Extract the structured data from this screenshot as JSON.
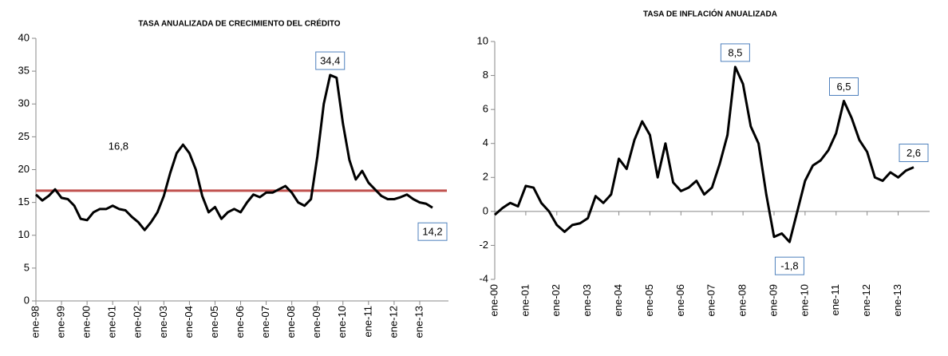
{
  "chart_data": [
    {
      "type": "line",
      "title": "TASA ANUALIZADA DE CRECIMIENTO DEL CRÉDITO",
      "categories": [
        "ene-98",
        null,
        null,
        null,
        "ene-99",
        null,
        null,
        null,
        "ene-00",
        null,
        null,
        null,
        "ene-01",
        null,
        null,
        null,
        "ene-02",
        null,
        null,
        null,
        "ene-03",
        null,
        null,
        null,
        "ene-04",
        null,
        null,
        null,
        "ene-05",
        null,
        null,
        null,
        "ene-06",
        null,
        null,
        null,
        "ene-07",
        null,
        null,
        null,
        "ene-08",
        null,
        null,
        null,
        "ene-09",
        null,
        null,
        null,
        "ene-10",
        null,
        null,
        null,
        "ene-11",
        null,
        null,
        null,
        "ene-12",
        null,
        null,
        null,
        "ene-13",
        null,
        null
      ],
      "series": [
        {
          "color": "#000000",
          "values": [
            16.2,
            15.3,
            16.0,
            17.0,
            15.7,
            15.5,
            14.5,
            12.5,
            12.3,
            13.5,
            14.0,
            14.0,
            14.5,
            14.0,
            13.8,
            12.8,
            12.0,
            10.8,
            12.0,
            13.5,
            16.0,
            19.5,
            22.5,
            23.8,
            22.5,
            20.0,
            16.0,
            13.5,
            14.3,
            12.5,
            13.5,
            14.0,
            13.5,
            15.0,
            16.2,
            15.8,
            16.5,
            16.5,
            17.0,
            17.5,
            16.5,
            15.0,
            14.5,
            15.5,
            22.0,
            30.0,
            34.4,
            34.0,
            27.0,
            21.5,
            18.5,
            19.8,
            18.0,
            17.0,
            16.0,
            15.5,
            15.5,
            15.8,
            16.2,
            15.5,
            15.0,
            14.8,
            14.2
          ],
          "value_labels": [
            null,
            null,
            null,
            null,
            null,
            null,
            null,
            null,
            null,
            null,
            null,
            null,
            null,
            null,
            null,
            null,
            null,
            null,
            null,
            null,
            null,
            null,
            null,
            null,
            null,
            null,
            null,
            null,
            null,
            null,
            null,
            null,
            null,
            null,
            null,
            null,
            null,
            null,
            null,
            null,
            null,
            null,
            null,
            null,
            null,
            null,
            "34,4",
            null,
            null,
            null,
            null,
            null,
            null,
            null,
            null,
            null,
            null,
            null,
            null,
            null,
            null,
            null,
            "14,2"
          ]
        }
      ],
      "reference_line": {
        "value": 16.8,
        "label": "16,8",
        "color": "#c0504d"
      },
      "ylim": [
        0,
        40
      ],
      "yticks": [
        0,
        5,
        10,
        15,
        20,
        25,
        30,
        35,
        40
      ]
    },
    {
      "type": "line",
      "title": "TASA DE INFLACIÓN ANUALIZADA",
      "categories": [
        "ene-00",
        null,
        null,
        null,
        "ene-01",
        null,
        null,
        null,
        "ene-02",
        null,
        null,
        null,
        "ene-03",
        null,
        null,
        null,
        "ene-04",
        null,
        null,
        null,
        "ene-05",
        null,
        null,
        null,
        "ene-06",
        null,
        null,
        null,
        "ene-07",
        null,
        null,
        null,
        "ene-08",
        null,
        null,
        null,
        "ene-09",
        null,
        null,
        null,
        "ene-10",
        null,
        null,
        null,
        "ene-11",
        null,
        null,
        null,
        "ene-12",
        null,
        null,
        null,
        "ene-13",
        null,
        null
      ],
      "series": [
        {
          "color": "#000000",
          "values": [
            -0.2,
            0.2,
            0.5,
            0.3,
            1.5,
            1.4,
            0.5,
            0.0,
            -0.8,
            -1.2,
            -0.8,
            -0.7,
            -0.4,
            0.9,
            0.5,
            1.0,
            3.1,
            2.5,
            4.2,
            5.3,
            4.5,
            2.0,
            4.0,
            1.7,
            1.2,
            1.4,
            1.8,
            1.0,
            1.4,
            2.8,
            4.5,
            8.5,
            7.5,
            5.0,
            4.0,
            1.0,
            -1.5,
            -1.3,
            -1.8,
            0.0,
            1.8,
            2.7,
            3.0,
            3.6,
            4.6,
            6.5,
            5.5,
            4.2,
            3.5,
            2.0,
            1.8,
            2.3,
            2.0,
            2.4,
            2.6
          ],
          "value_labels": [
            null,
            null,
            null,
            null,
            null,
            null,
            null,
            null,
            null,
            null,
            null,
            null,
            null,
            null,
            null,
            null,
            null,
            null,
            null,
            null,
            null,
            null,
            null,
            null,
            null,
            null,
            null,
            null,
            null,
            null,
            null,
            "8,5",
            null,
            null,
            null,
            null,
            null,
            null,
            "-1,8",
            null,
            null,
            null,
            null,
            null,
            null,
            "6,5",
            null,
            null,
            null,
            null,
            null,
            null,
            null,
            null,
            "2,6"
          ]
        }
      ],
      "ylim": [
        -4,
        10
      ],
      "yticks": [
        -4,
        -2,
        0,
        2,
        4,
        6,
        8,
        10
      ]
    }
  ]
}
